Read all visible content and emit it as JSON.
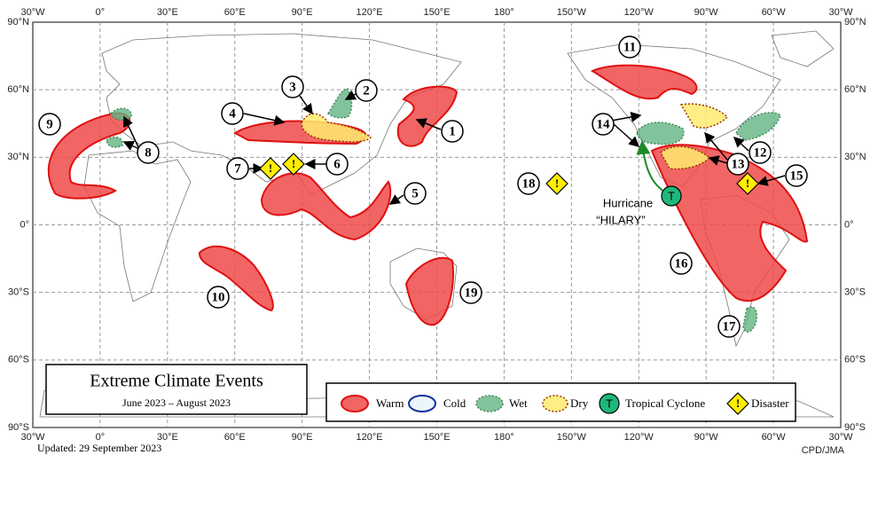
{
  "map": {
    "title": "Extreme Climate Events",
    "period": "June 2023 – August 2023",
    "updated": "Updated: 29 September 2023",
    "credit": "CPD/JMA",
    "lon_labels": [
      "30°W",
      "0°",
      "30°E",
      "60°E",
      "90°E",
      "120°E",
      "150°E",
      "180°",
      "150°W",
      "120°W",
      "90°W",
      "60°W",
      "30°W"
    ],
    "lat_labels": [
      "90°N",
      "60°N",
      "30°N",
      "0°",
      "30°S",
      "60°S",
      "90°S"
    ],
    "events": [
      "1",
      "2",
      "3",
      "4",
      "5",
      "6",
      "7",
      "8",
      "9",
      "10",
      "11",
      "12",
      "13",
      "14",
      "15",
      "16",
      "17",
      "18",
      "19"
    ],
    "hurricane": {
      "label": "Hurricane",
      "name": "“HILARY”"
    },
    "icons": {
      "disaster": "!",
      "cyclone": "T"
    },
    "legend": [
      "Warm",
      "Cold",
      "Wet",
      "Dry",
      "Tropical  Cyclone",
      "Disaster"
    ]
  }
}
